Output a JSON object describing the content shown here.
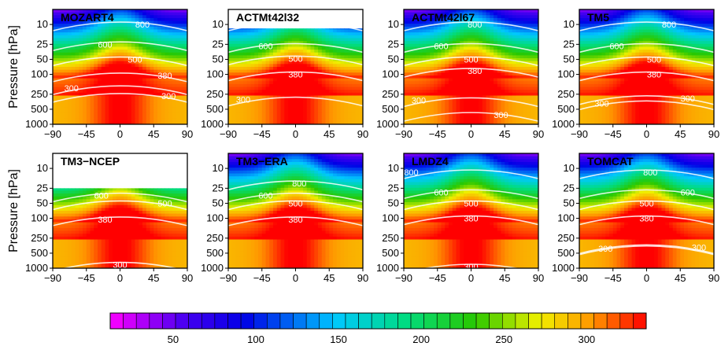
{
  "figure": {
    "ylabel": "Pressure [hPa]",
    "colorbar": {
      "ticks": [
        50,
        100,
        150,
        200,
        250,
        300
      ],
      "range": [
        12,
        336
      ],
      "step": 8
    }
  },
  "chart_data": [
    {
      "type": "heatmap",
      "title": "MOZART4",
      "x_ticks": [
        -90,
        -45,
        0,
        45,
        90
      ],
      "y_ticks": [
        10,
        25,
        50,
        100,
        250,
        500,
        1000
      ],
      "xlim": [
        -90,
        90
      ],
      "ylim": [
        1000,
        5
      ],
      "yscale": "log",
      "top_cutoff_hPa": 5,
      "contour_labels": [
        {
          "text": "800",
          "lat": 30,
          "p": 10
        },
        {
          "text": "600",
          "lat": -20,
          "p": 25
        },
        {
          "text": "500",
          "lat": 20,
          "p": 50
        },
        {
          "text": "380",
          "lat": 60,
          "p": 105
        },
        {
          "text": "300",
          "lat": -65,
          "p": 190
        },
        {
          "text": "300",
          "lat": 65,
          "p": 270
        }
      ]
    },
    {
      "type": "heatmap",
      "title": "ACTMt42l32",
      "x_ticks": [
        -90,
        -45,
        0,
        45,
        90
      ],
      "y_ticks": [
        10,
        25,
        50,
        100,
        250,
        500,
        1000
      ],
      "xlim": [
        -90,
        90
      ],
      "ylim": [
        1000,
        5
      ],
      "yscale": "log",
      "top_cutoff_hPa": 12,
      "contour_labels": [
        {
          "text": "800",
          "lat": 5,
          "p": 10
        },
        {
          "text": "600",
          "lat": -40,
          "p": 27
        },
        {
          "text": "500",
          "lat": 0,
          "p": 48
        },
        {
          "text": "380",
          "lat": 0,
          "p": 100
        },
        {
          "text": "300",
          "lat": -70,
          "p": 320
        }
      ]
    },
    {
      "type": "heatmap",
      "title": "ACTMt42l67",
      "x_ticks": [
        -90,
        -45,
        0,
        45,
        90
      ],
      "y_ticks": [
        10,
        25,
        50,
        100,
        250,
        500,
        1000
      ],
      "xlim": [
        -90,
        90
      ],
      "ylim": [
        1000,
        5
      ],
      "yscale": "log",
      "top_cutoff_hPa": 5,
      "contour_labels": [
        {
          "text": "800",
          "lat": 5,
          "p": 10
        },
        {
          "text": "600",
          "lat": -40,
          "p": 27
        },
        {
          "text": "500",
          "lat": 0,
          "p": 50
        },
        {
          "text": "380",
          "lat": 5,
          "p": 85
        },
        {
          "text": "300",
          "lat": -70,
          "p": 330
        },
        {
          "text": "300",
          "lat": 40,
          "p": 650
        }
      ]
    },
    {
      "type": "heatmap",
      "title": "TM5",
      "x_ticks": [
        -90,
        -45,
        0,
        45,
        90
      ],
      "y_ticks": [
        10,
        25,
        50,
        100,
        250,
        500,
        1000
      ],
      "xlim": [
        -90,
        90
      ],
      "ylim": [
        1000,
        5
      ],
      "yscale": "log",
      "top_cutoff_hPa": 5,
      "contour_labels": [
        {
          "text": "800",
          "lat": 30,
          "p": 10
        },
        {
          "text": "600",
          "lat": -40,
          "p": 27
        },
        {
          "text": "500",
          "lat": 10,
          "p": 50
        },
        {
          "text": "380",
          "lat": 10,
          "p": 100
        },
        {
          "text": "300",
          "lat": -60,
          "p": 380
        },
        {
          "text": "300",
          "lat": 55,
          "p": 300
        }
      ]
    },
    {
      "type": "heatmap",
      "title": "TM3−NCEP",
      "x_ticks": [
        -90,
        -45,
        0,
        45,
        90
      ],
      "y_ticks": [
        10,
        25,
        50,
        100,
        250,
        500,
        1000
      ],
      "xlim": [
        -90,
        90
      ],
      "ylim": [
        1000,
        5
      ],
      "yscale": "log",
      "top_cutoff_hPa": 25,
      "contour_labels": [
        {
          "text": "600",
          "lat": -25,
          "p": 35
        },
        {
          "text": "500",
          "lat": 60,
          "p": 50
        },
        {
          "text": "380",
          "lat": -20,
          "p": 105
        },
        {
          "text": "300",
          "lat": 0,
          "p": 850
        }
      ]
    },
    {
      "type": "heatmap",
      "title": "TM3−ERA",
      "x_ticks": [
        -90,
        -45,
        0,
        45,
        90
      ],
      "y_ticks": [
        10,
        25,
        50,
        100,
        250,
        500,
        1000
      ],
      "xlim": [
        -90,
        90
      ],
      "ylim": [
        1000,
        5
      ],
      "yscale": "log",
      "top_cutoff_hPa": 5,
      "contour_labels": [
        {
          "text": "800",
          "lat": 5,
          "p": 20
        },
        {
          "text": "600",
          "lat": -40,
          "p": 35
        },
        {
          "text": "500",
          "lat": 0,
          "p": 50
        },
        {
          "text": "380",
          "lat": 0,
          "p": 105
        }
      ]
    },
    {
      "type": "heatmap",
      "title": "LMDZ4",
      "x_ticks": [
        -90,
        -45,
        0,
        45,
        90
      ],
      "y_ticks": [
        10,
        25,
        50,
        100,
        250,
        500,
        1000
      ],
      "xlim": [
        -90,
        90
      ],
      "ylim": [
        1000,
        5
      ],
      "yscale": "log",
      "top_cutoff_hPa": 5,
      "contour_labels": [
        {
          "text": "800",
          "lat": -80,
          "p": 12
        },
        {
          "text": "600",
          "lat": -40,
          "p": 30
        },
        {
          "text": "500",
          "lat": 0,
          "p": 50
        },
        {
          "text": "380",
          "lat": 0,
          "p": 100
        },
        {
          "text": "300",
          "lat": 0,
          "p": 930
        }
      ]
    },
    {
      "type": "heatmap",
      "title": "TOMCAT",
      "x_ticks": [
        -90,
        -45,
        0,
        45,
        90
      ],
      "y_ticks": [
        10,
        25,
        50,
        100,
        250,
        500,
        1000
      ],
      "xlim": [
        -90,
        90
      ],
      "ylim": [
        1000,
        5
      ],
      "yscale": "log",
      "top_cutoff_hPa": 5,
      "contour_labels": [
        {
          "text": "800",
          "lat": 5,
          "p": 12
        },
        {
          "text": "600",
          "lat": 55,
          "p": 30
        },
        {
          "text": "500",
          "lat": 0,
          "p": 50
        },
        {
          "text": "380",
          "lat": 0,
          "p": 100
        },
        {
          "text": "300",
          "lat": -55,
          "p": 400
        },
        {
          "text": "300",
          "lat": 70,
          "p": 380
        }
      ]
    }
  ]
}
